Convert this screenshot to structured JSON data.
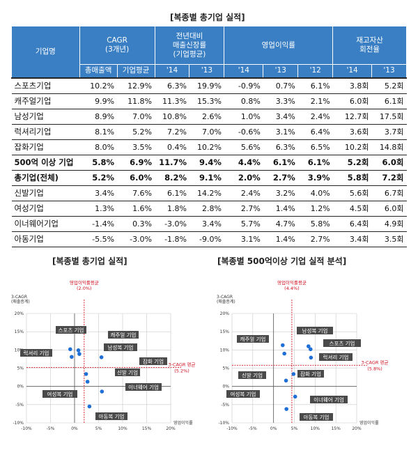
{
  "table": {
    "title": "[복종별 총기업 실적]",
    "headers": {
      "company": "기업명",
      "cagr": "CAGR",
      "cagr_sub": "(3개년)",
      "growth": "전년대비",
      "growth_sub": "매출신장률",
      "growth_sub2": "(기업평균)",
      "margin": "영업이익률",
      "inventory": "재고자산",
      "inventory_sub": "회전율",
      "sub": [
        "총매출액",
        "기업평균",
        "'14",
        "'13",
        "'14",
        "'13",
        "'12",
        "'14",
        "'13"
      ]
    },
    "rows": [
      {
        "name": "스포츠기업",
        "bold": false,
        "values": [
          "10.2%",
          "12.9%",
          "6.3%",
          "19.9%",
          "-0.9%",
          "0.7%",
          "6.1%",
          "3.8회",
          "5.2회"
        ]
      },
      {
        "name": "캐주얼기업",
        "bold": false,
        "values": [
          "9.9%",
          "11.8%",
          "11.3%",
          "15.3%",
          "0.8%",
          "3.3%",
          "2.1%",
          "6.0회",
          "6.1회"
        ]
      },
      {
        "name": "남성기업",
        "bold": false,
        "values": [
          "8.9%",
          "7.0%",
          "10.8%",
          "2.6%",
          "1.0%",
          "3.4%",
          "2.4%",
          "12.7회",
          "17.5회"
        ]
      },
      {
        "name": "럭셔리기업",
        "bold": false,
        "values": [
          "8.1%",
          "5.2%",
          "7.2%",
          "7.0%",
          "-0.6%",
          "3.1%",
          "6.4%",
          "3.6회",
          "3.7회"
        ]
      },
      {
        "name": "잡화기업",
        "bold": false,
        "values": [
          "8.0%",
          "3.5%",
          "0.4%",
          "10.2%",
          "5.6%",
          "6.3%",
          "6.5%",
          "10.2회",
          "14.8회"
        ]
      },
      {
        "name": "500억 이상 기업",
        "bold": true,
        "values": [
          "5.8%",
          "6.9%",
          "11.7%",
          "9.4%",
          "4.4%",
          "6.1%",
          "6.1%",
          "5.2회",
          "6.0회"
        ]
      },
      {
        "name": "총기업(전체)",
        "bold": true,
        "values": [
          "5.2%",
          "6.0%",
          "8.2%",
          "9.1%",
          "2.0%",
          "2.7%",
          "3.9%",
          "5.8회",
          "7.2회"
        ]
      },
      {
        "name": "신발기업",
        "bold": false,
        "values": [
          "3.4%",
          "7.6%",
          "6.1%",
          "14.2%",
          "2.4%",
          "3.2%",
          "4.0%",
          "5.6회",
          "6.7회"
        ]
      },
      {
        "name": "여성기업",
        "bold": false,
        "values": [
          "1.3%",
          "1.6%",
          "1.8%",
          "2.8%",
          "2.7%",
          "1.4%",
          "1.2%",
          "4.5회",
          "6.0회"
        ]
      },
      {
        "name": "이너웨어기업",
        "bold": false,
        "values": [
          "-1.4%",
          "0.3%",
          "-3.0%",
          "3.4%",
          "5.7%",
          "4.7%",
          "5.8%",
          "6.4회",
          "4.9회"
        ]
      },
      {
        "name": "아동기업",
        "bold": false,
        "values": [
          "-5.5%",
          "-3.0%",
          "-1.8%",
          "-9.0%",
          "3.1%",
          "1.4%",
          "2.7%",
          "3.4회",
          "3.5회"
        ]
      }
    ]
  },
  "chart_data": [
    {
      "type": "scatter",
      "title": "[복종별 총기업 실적]",
      "ylabel": "3-CAGR",
      "ylabel_sub": "(매출증계)",
      "xlabel": "영업이익률",
      "xlim": [
        -10,
        20
      ],
      "ylim": [
        -10,
        20
      ],
      "xticks": [
        "-10%",
        "-5%",
        "0%",
        "5%",
        "10%",
        "15%",
        "20%"
      ],
      "yticks": [
        "20%",
        "15%",
        "10%",
        "5%",
        "0%",
        "-5%",
        "-10%"
      ],
      "x_ref": 2.0,
      "y_ref": 5.2,
      "x_ref_label": "영업이익률평균",
      "x_ref_value": "(2.0%)",
      "y_ref_label": "3-CAGR 평균",
      "y_ref_value": "(5.2%)",
      "label_color": "#4a4a4a",
      "point_color": "#1f6fd6",
      "points": [
        {
          "label": "스포츠 기업",
          "x": -0.9,
          "y": 10.2
        },
        {
          "label": "캐주얼 기업",
          "x": 0.8,
          "y": 9.9
        },
        {
          "label": "남성복 기업",
          "x": 1.0,
          "y": 8.9
        },
        {
          "label": "럭셔리 기업",
          "x": -0.6,
          "y": 8.1
        },
        {
          "label": "잡화 기업",
          "x": 5.6,
          "y": 8.0
        },
        {
          "label": "신발 기업",
          "x": 2.4,
          "y": 3.4
        },
        {
          "label": "여성복 기업",
          "x": 2.7,
          "y": 1.3
        },
        {
          "label": "이너웨어 기업",
          "x": 5.7,
          "y": -1.4
        },
        {
          "label": "아동복 기업",
          "x": 3.1,
          "y": -5.5
        }
      ]
    },
    {
      "type": "scatter",
      "title": "[복종별 500억이상 기업 실적 분석]",
      "ylabel": "3-CAGR",
      "ylabel_sub": "(매출증계)",
      "xlabel": "영업이익률",
      "xlim": [
        -10,
        20
      ],
      "ylim": [
        -10,
        20
      ],
      "xticks": [
        "-10%",
        "-5%",
        "0%",
        "5%",
        "10%",
        "15%",
        "20%"
      ],
      "yticks": [
        "20%",
        "15%",
        "10%",
        "5%",
        "0%",
        "-5%",
        "-10%"
      ],
      "x_ref": 4.4,
      "y_ref": 5.8,
      "x_ref_label": "영업이익률평균",
      "x_ref_value": "(4.4%)",
      "y_ref_label": "3-CAGR 평균",
      "y_ref_value": "(5.8%)",
      "label_color": "#4a4a4a",
      "point_color": "#1f6fd6",
      "points": [
        {
          "label": "남성복 기업",
          "x": 8.4,
          "y": 11.0
        },
        {
          "label": "캐주얼 기업",
          "x": 2.2,
          "y": 11.3
        },
        {
          "label": "스포츠 기업",
          "x": 8.9,
          "y": 10.2
        },
        {
          "label": "럭셔리 기업",
          "x": 2.6,
          "y": 9.0
        },
        {
          "label": "잡화 기업",
          "x": 9.0,
          "y": 7.9
        },
        {
          "label": "신발 기업",
          "x": 4.8,
          "y": 3.4
        },
        {
          "label": "여성복 기업",
          "x": 3.0,
          "y": 1.6
        },
        {
          "label": "이너웨어 기업",
          "x": 5.2,
          "y": -2.8
        },
        {
          "label": "아동복 기업",
          "x": 3.1,
          "y": -6.2
        }
      ]
    }
  ]
}
